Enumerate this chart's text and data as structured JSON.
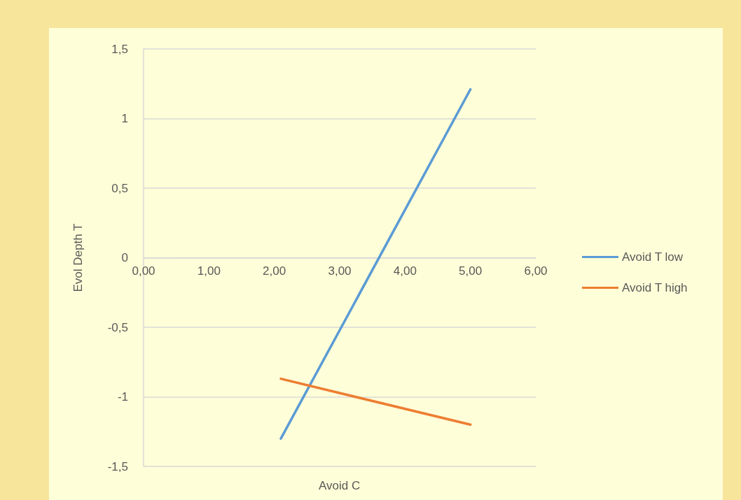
{
  "chart_data": {
    "type": "line",
    "xlabel": "Avoid C",
    "ylabel": "Evol Depth T",
    "x": [
      2.1,
      5.0
    ],
    "series": [
      {
        "name": "Avoid T low",
        "color": "#5b9bd5",
        "values": [
          -1.3,
          1.21
        ]
      },
      {
        "name": "Avoid T high",
        "color": "#ed7d31",
        "values": [
          -0.87,
          -1.2
        ]
      }
    ],
    "xlim": [
      0,
      6
    ],
    "xticks": [
      {
        "value": 0,
        "label": "0,00"
      },
      {
        "value": 1,
        "label": "1,00"
      },
      {
        "value": 2,
        "label": "2,00"
      },
      {
        "value": 3,
        "label": "3,00"
      },
      {
        "value": 4,
        "label": "4,00"
      },
      {
        "value": 5,
        "label": "5,00"
      },
      {
        "value": 6,
        "label": "6,00"
      }
    ],
    "ylim": [
      -1.5,
      1.5
    ],
    "yticks": [
      {
        "value": -1.5,
        "label": "-1,5"
      },
      -1,
      {
        "value": -0.5,
        "label": "-0,5"
      },
      0,
      {
        "value": 0.5,
        "label": "0,5"
      },
      1,
      {
        "value": 1.5,
        "label": "1,5"
      }
    ],
    "grid": "y",
    "legend": "right",
    "marker": "none",
    "line_style": "solid"
  }
}
